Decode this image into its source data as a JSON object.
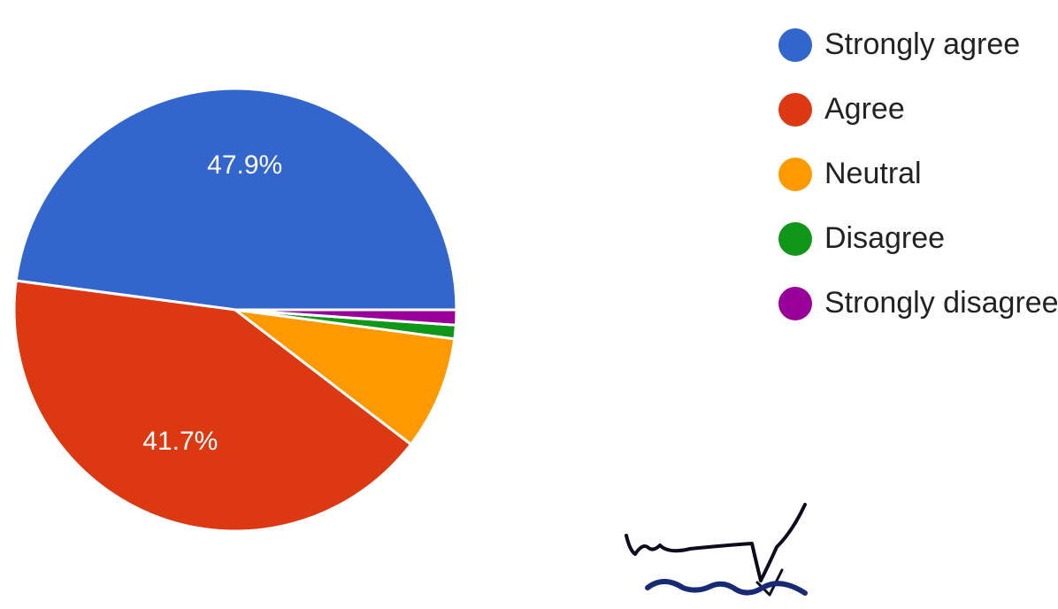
{
  "chart_data": {
    "type": "pie",
    "title": "",
    "slices": [
      {
        "label": "Strongly agree",
        "value": 47.9,
        "color": "#3366cc",
        "data_label": "47.9%"
      },
      {
        "label": "Agree",
        "value": 41.7,
        "color": "#dc3912",
        "data_label": "41.7%"
      },
      {
        "label": "Neutral",
        "value": 8.3,
        "color": "#ff9900",
        "data_label": ""
      },
      {
        "label": "Disagree",
        "value": 1.0,
        "color": "#109618",
        "data_label": ""
      },
      {
        "label": "Strongly disagree",
        "value": 1.1,
        "color": "#990099",
        "data_label": ""
      }
    ],
    "legend": {
      "position": "right",
      "items": [
        "Strongly agree",
        "Agree",
        "Neutral",
        "Disagree",
        "Strongly disagree"
      ]
    }
  },
  "annotations": {
    "signature": "handwritten signature (partially visible)"
  }
}
